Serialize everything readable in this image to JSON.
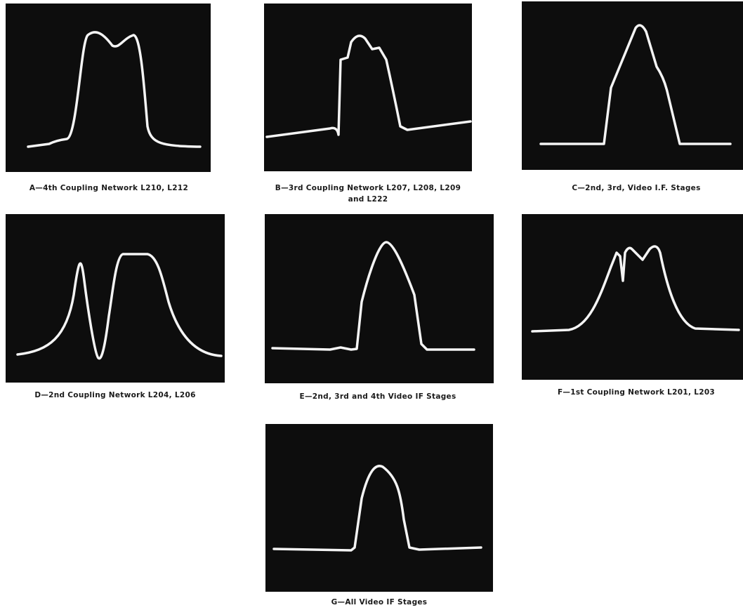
{
  "panels": [
    {
      "caption": [
        "A—4th Coupling Network L210, L212"
      ]
    },
    {
      "caption": [
        "B—3rd Coupling Network L207, L208, L209",
        "and L222"
      ]
    },
    {
      "caption": [
        "C—2nd, 3rd, Video I.F. Stages"
      ]
    },
    {
      "caption": [
        "D—2nd Coupling Network L204, L206"
      ]
    },
    {
      "caption": [
        "E—2nd, 3rd and 4th Video IF Stages"
      ]
    },
    {
      "caption": [
        "F—1st Coupling Network L201, L203"
      ]
    },
    {
      "caption": [
        "G—All Video IF Stages"
      ]
    }
  ]
}
